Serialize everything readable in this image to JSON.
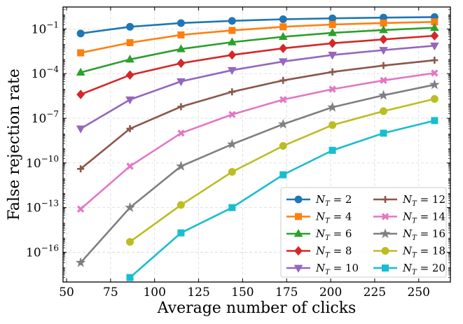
{
  "chart_data": {
    "type": "line",
    "xlabel": "Average number of clicks",
    "ylabel": "False rejection rate",
    "yscale": "log",
    "xlim": [
      48,
      268
    ],
    "ylim": [
      1e-18,
      3
    ],
    "grid": true,
    "legend_position": "lower-right",
    "legend_columns": 2,
    "x_ticks": [
      50,
      75,
      100,
      125,
      150,
      175,
      200,
      225,
      250
    ],
    "y_ticks": [
      {
        "value": 0.1,
        "mantissa": "10",
        "exponent": "−1"
      },
      {
        "value": 0.0001,
        "mantissa": "10",
        "exponent": "−4"
      },
      {
        "value": 1e-07,
        "mantissa": "10",
        "exponent": "−7"
      },
      {
        "value": 1e-10,
        "mantissa": "10",
        "exponent": "−10"
      },
      {
        "value": 1e-13,
        "mantissa": "10",
        "exponent": "−13"
      },
      {
        "value": 1e-16,
        "mantissa": "10",
        "exponent": "−16"
      }
    ],
    "series": [
      {
        "label_var": "N",
        "label_sub": "T",
        "label_val": "2",
        "color": "#1f77b4",
        "marker": "circle",
        "x": [
          58,
          86,
          115,
          144,
          173,
          201,
          230,
          259
        ],
        "y": [
          0.05,
          0.14,
          0.25,
          0.35,
          0.45,
          0.52,
          0.58,
          0.63
        ]
      },
      {
        "label_var": "N",
        "label_sub": "T",
        "label_val": "4",
        "color": "#ff7f0e",
        "marker": "square",
        "x": [
          58,
          86,
          115,
          144,
          173,
          201,
          230,
          259
        ],
        "y": [
          0.0025,
          0.012,
          0.04,
          0.08,
          0.14,
          0.2,
          0.25,
          0.3
        ]
      },
      {
        "label_var": "N",
        "label_sub": "T",
        "label_val": "6",
        "color": "#2ca02c",
        "marker": "triangle-up",
        "x": [
          58,
          86,
          115,
          144,
          173,
          201,
          230,
          259
        ],
        "y": [
          0.00012,
          0.0009,
          0.0045,
          0.013,
          0.03,
          0.055,
          0.085,
          0.12
        ]
      },
      {
        "label_var": "N",
        "label_sub": "T",
        "label_val": "8",
        "color": "#d62728",
        "marker": "diamond",
        "x": [
          58,
          86,
          115,
          144,
          173,
          201,
          230,
          259
        ],
        "y": [
          4e-06,
          8e-05,
          0.0005,
          0.0018,
          0.005,
          0.011,
          0.02,
          0.035
        ]
      },
      {
        "label_var": "N",
        "label_sub": "T",
        "label_val": "10",
        "color": "#9467bd",
        "marker": "triangle-down",
        "x": [
          58,
          86,
          115,
          144,
          173,
          201,
          230,
          259
        ],
        "y": [
          2e-08,
          1.8e-06,
          3e-05,
          0.00017,
          0.00065,
          0.0018,
          0.0038,
          0.0075
        ]
      },
      {
        "label_var": "N",
        "label_sub": "T",
        "label_val": "12",
        "color": "#8c564b",
        "marker": "plus",
        "x": [
          58,
          86,
          115,
          144,
          173,
          201,
          230,
          259
        ],
        "y": [
          4e-11,
          2e-08,
          6e-07,
          6e-06,
          3.5e-05,
          0.00013,
          0.00035,
          0.0008
        ]
      },
      {
        "label_var": "N",
        "label_sub": "T",
        "label_val": "14",
        "color": "#e377c2",
        "marker": "x",
        "x": [
          58,
          86,
          115,
          144,
          173,
          201,
          230,
          259
        ],
        "y": [
          8e-14,
          6e-11,
          1e-08,
          1.8e-07,
          1.8e-06,
          9e-06,
          3.5e-05,
          0.00011
        ]
      },
      {
        "label_var": "N",
        "label_sub": "T",
        "label_val": "16",
        "color": "#7f7f7f",
        "marker": "star",
        "x": [
          58,
          86,
          115,
          144,
          173,
          201,
          230,
          259
        ],
        "y": [
          2e-17,
          1e-13,
          6e-11,
          1.8e-09,
          4e-08,
          5.5e-07,
          3.5e-06,
          1.8e-05
        ]
      },
      {
        "label_var": "N",
        "label_sub": "T",
        "label_val": "18",
        "color": "#bcbd22",
        "marker": "circle",
        "x": [
          86,
          115,
          144,
          173,
          201,
          230,
          259
        ],
        "y": [
          5e-16,
          1.5e-13,
          2.5e-11,
          1.4e-09,
          3.5e-08,
          3e-07,
          2e-06
        ]
      },
      {
        "label_var": "N",
        "label_sub": "T",
        "label_val": "20",
        "color": "#17becf",
        "marker": "square",
        "x": [
          86,
          115,
          144,
          173,
          201,
          230,
          259
        ],
        "y": [
          2e-18,
          2e-15,
          1e-13,
          1.6e-11,
          7e-10,
          1e-08,
          7e-08
        ]
      }
    ]
  }
}
